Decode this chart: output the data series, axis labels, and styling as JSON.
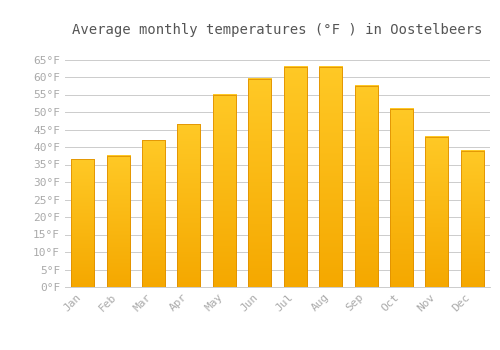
{
  "title": "Average monthly temperatures (°F ) in Oostelbeers",
  "months": [
    "Jan",
    "Feb",
    "Mar",
    "Apr",
    "May",
    "Jun",
    "Jul",
    "Aug",
    "Sep",
    "Oct",
    "Nov",
    "Dec"
  ],
  "values": [
    36.5,
    37.5,
    42.0,
    46.5,
    55.0,
    59.5,
    63.0,
    63.0,
    57.5,
    51.0,
    43.0,
    39.0
  ],
  "bar_color_top": "#FFC926",
  "bar_color_bottom": "#F5A800",
  "bar_edge_color": "#E09000",
  "ylim": [
    0,
    70
  ],
  "yticks": [
    0,
    5,
    10,
    15,
    20,
    25,
    30,
    35,
    40,
    45,
    50,
    55,
    60,
    65
  ],
  "ytick_labels": [
    "0°F",
    "5°F",
    "10°F",
    "15°F",
    "20°F",
    "25°F",
    "30°F",
    "35°F",
    "40°F",
    "45°F",
    "50°F",
    "55°F",
    "60°F",
    "65°F"
  ],
  "grid_color": "#cccccc",
  "bg_color": "#ffffff",
  "title_fontsize": 10,
  "tick_fontsize": 8,
  "title_color": "#555555",
  "tick_color": "#aaaaaa"
}
